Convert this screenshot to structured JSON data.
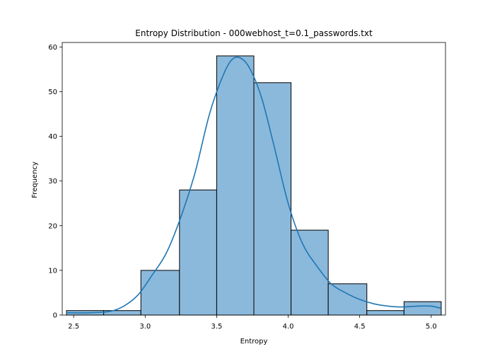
{
  "chart_data": {
    "type": "bar",
    "title": "Entropy Distribution - 000webhost_t=0.1_passwords.txt",
    "xlabel": "Entropy",
    "ylabel": "Frequency",
    "xlim": [
      2.42,
      5.1
    ],
    "ylim": [
      0,
      61
    ],
    "xticks": [
      2.5,
      3.0,
      3.5,
      4.0,
      4.5,
      5.0
    ],
    "xtick_labels": [
      "2.5",
      "3.0",
      "3.5",
      "4.0",
      "4.5",
      "5.0"
    ],
    "yticks": [
      0,
      10,
      20,
      30,
      40,
      50,
      60
    ],
    "ytick_labels": [
      "0",
      "10",
      "20",
      "30",
      "40",
      "50",
      "60"
    ],
    "bins": [
      {
        "x0": 2.45,
        "x1": 2.71,
        "count": 1
      },
      {
        "x0": 2.71,
        "x1": 2.97,
        "count": 1
      },
      {
        "x0": 2.97,
        "x1": 3.24,
        "count": 10
      },
      {
        "x0": 3.24,
        "x1": 3.5,
        "count": 28
      },
      {
        "x0": 3.5,
        "x1": 3.76,
        "count": 58
      },
      {
        "x0": 3.76,
        "x1": 4.02,
        "count": 52
      },
      {
        "x0": 4.02,
        "x1": 4.28,
        "count": 19
      },
      {
        "x0": 4.28,
        "x1": 4.55,
        "count": 7
      },
      {
        "x0": 4.55,
        "x1": 4.81,
        "count": 1
      },
      {
        "x0": 4.81,
        "x1": 5.07,
        "count": 3
      }
    ],
    "kde": {
      "x": [
        2.45,
        2.6,
        2.75,
        2.85,
        2.95,
        3.05,
        3.15,
        3.25,
        3.35,
        3.45,
        3.55,
        3.62,
        3.69,
        3.75,
        3.82,
        3.9,
        4.0,
        4.1,
        4.2,
        4.3,
        4.4,
        4.5,
        4.6,
        4.7,
        4.8,
        4.9,
        5.0,
        5.07
      ],
      "y": [
        0.5,
        0.5,
        0.8,
        2,
        4.5,
        9,
        14,
        22,
        32,
        45,
        54,
        57.5,
        57,
        54,
        48,
        38,
        25,
        16,
        11,
        7,
        5,
        3.5,
        2.5,
        2,
        1.8,
        2,
        2,
        1.5
      ]
    },
    "grid": false,
    "colors": {
      "bar_fill": "#8bb9db",
      "bar_edge": "#000000",
      "kde": "#1f77b4"
    }
  }
}
